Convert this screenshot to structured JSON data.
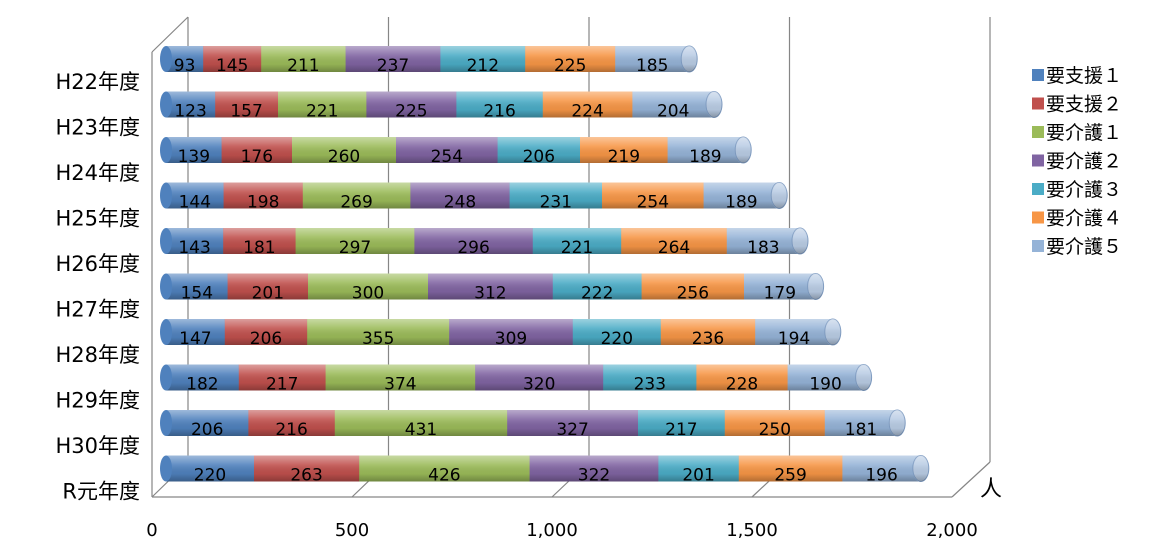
{
  "chart_data": {
    "type": "bar",
    "orientation": "horizontal",
    "stacked": true,
    "three_d": true,
    "categories": [
      "H22年度",
      "H23年度",
      "H24年度",
      "H25年度",
      "H26年度",
      "H27年度",
      "H28年度",
      "H29年度",
      "H30年度",
      "R元年度"
    ],
    "series": [
      {
        "name": "要支援１",
        "color": "#4f81bd",
        "values": [
          93,
          123,
          139,
          144,
          143,
          154,
          147,
          182,
          206,
          220
        ]
      },
      {
        "name": "要支援２",
        "color": "#c0504d",
        "values": [
          145,
          157,
          176,
          198,
          181,
          201,
          206,
          217,
          216,
          263
        ]
      },
      {
        "name": "要介護１",
        "color": "#9bbb59",
        "values": [
          211,
          221,
          260,
          269,
          297,
          300,
          355,
          374,
          431,
          426
        ]
      },
      {
        "name": "要介護２",
        "color": "#8064a2",
        "values": [
          237,
          225,
          254,
          248,
          296,
          312,
          309,
          320,
          327,
          322
        ]
      },
      {
        "name": "要介護３",
        "color": "#4bacc6",
        "values": [
          212,
          216,
          206,
          231,
          221,
          222,
          220,
          233,
          217,
          201
        ]
      },
      {
        "name": "要介護４",
        "color": "#f79646",
        "values": [
          225,
          224,
          219,
          254,
          264,
          256,
          236,
          228,
          250,
          259
        ]
      },
      {
        "name": "要介護５",
        "color": "#95b3d7",
        "values": [
          185,
          204,
          189,
          189,
          183,
          179,
          194,
          190,
          181,
          196
        ]
      }
    ],
    "xlim": [
      0,
      2000
    ],
    "xticks": [
      0,
      500,
      1000,
      1500,
      2000
    ],
    "xtick_labels": [
      "0",
      "500",
      "1,000",
      "1,500",
      "2,000"
    ],
    "unit_label": "人",
    "grid": true,
    "legend_position": "right"
  }
}
